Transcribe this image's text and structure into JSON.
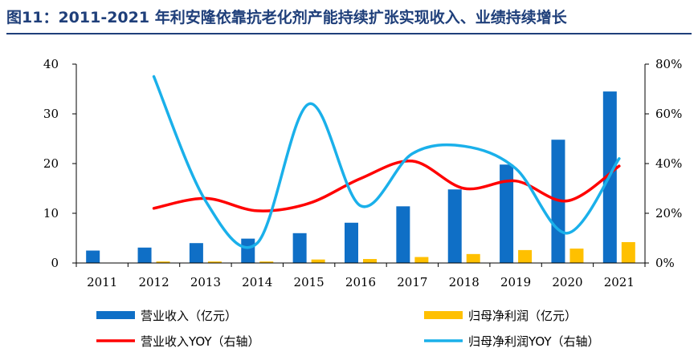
{
  "figure": {
    "title": "图11：2011-2021 年利安隆依靠抗老化剂产能持续扩张实现收入、业绩持续增长"
  },
  "chart_data": {
    "type": "bar",
    "categories": [
      "2011",
      "2012",
      "2013",
      "2014",
      "2015",
      "2016",
      "2017",
      "2018",
      "2019",
      "2020",
      "2021"
    ],
    "series": [
      {
        "name": "营业收入（亿元）",
        "kind": "bar",
        "axis": "left",
        "color": "#0f6fc6",
        "values": [
          2.5,
          3.1,
          4.0,
          4.9,
          6.0,
          8.1,
          11.4,
          14.8,
          19.8,
          24.8,
          34.5
        ]
      },
      {
        "name": "归母净利润（亿元）",
        "kind": "bar",
        "axis": "left",
        "color": "#ffc000",
        "values": [
          0.0,
          0.3,
          0.3,
          0.3,
          0.7,
          0.8,
          1.2,
          1.8,
          2.6,
          2.9,
          4.2
        ]
      },
      {
        "name": "营业收入YOY（右轴）",
        "kind": "line",
        "axis": "right",
        "unit": "%",
        "color": "#ff0000",
        "values": [
          null,
          22,
          26,
          21,
          24,
          34,
          41,
          30,
          33,
          25,
          39
        ]
      },
      {
        "name": "归母净利润YOY（右轴）",
        "kind": "line",
        "axis": "right",
        "unit": "%",
        "color": "#1ab0ea",
        "values": [
          null,
          75,
          25,
          8,
          64,
          23,
          44,
          47,
          38,
          12,
          42
        ]
      }
    ],
    "left_axis": {
      "ticks": [
        "0",
        "10",
        "20",
        "30",
        "40"
      ],
      "ylim": [
        0,
        40
      ]
    },
    "right_axis": {
      "ticks": [
        "0%",
        "20%",
        "40%",
        "60%",
        "80%"
      ],
      "ylim": [
        0,
        80
      ]
    },
    "legend_position": "bottom",
    "grid": false
  }
}
